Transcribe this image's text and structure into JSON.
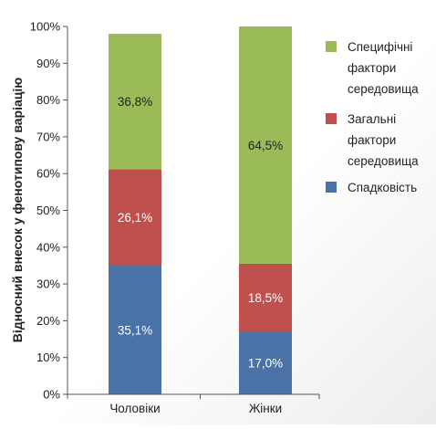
{
  "chart_data": {
    "type": "bar",
    "stacked": true,
    "normalized": true,
    "categories": [
      "Чоловіки",
      "Жінки"
    ],
    "series": [
      {
        "name": "Спадковість",
        "values": [
          35.1,
          17.0
        ],
        "labels": [
          "35,1%",
          "17,0%"
        ],
        "color": "#4a72a6",
        "label_color": "#ffffff"
      },
      {
        "name": "Загальні фактори середовища",
        "legend_lines": [
          "Загальні",
          "фактори",
          "середовища"
        ],
        "values": [
          26.1,
          18.5
        ],
        "labels": [
          "26,1%",
          "18,5%"
        ],
        "color": "#c0504d",
        "label_color": "#ffffff"
      },
      {
        "name": "Специфічні фактори середовища",
        "legend_lines": [
          "Специфічні",
          "фактори",
          "середовища"
        ],
        "values": [
          36.8,
          64.5
        ],
        "labels": [
          "36,8%",
          "64,5%"
        ],
        "color": "#9bbb59",
        "label_color": "#222222"
      }
    ],
    "ylabel": "Відносний внесок у фенотипову варіацію",
    "xlabel": "",
    "ylim": [
      0,
      100
    ],
    "yticks": [
      "0%",
      "10%",
      "20%",
      "30%",
      "40%",
      "50%",
      "60%",
      "70%",
      "80%",
      "90%",
      "100%"
    ],
    "grid": false,
    "legend_position": "right"
  }
}
